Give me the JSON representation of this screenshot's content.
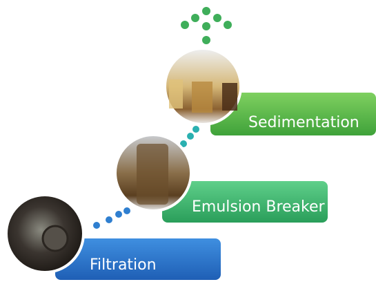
{
  "steps": [
    {
      "label": "Filtration"
    },
    {
      "label": "Emulsion Breaker"
    },
    {
      "label": "Sedimentation"
    }
  ]
}
